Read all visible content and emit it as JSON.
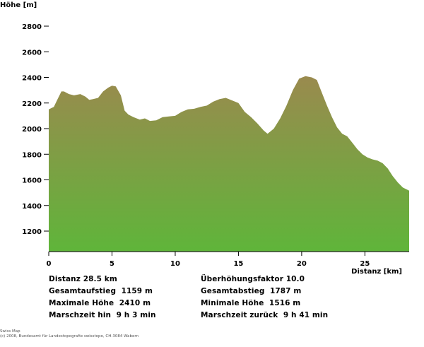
{
  "chart_data": {
    "type": "area",
    "ylabel": "Höhe [m]",
    "xlabel": "Distanz [km]",
    "ylim": [
      1040,
      2960
    ],
    "xlim": [
      0,
      28.5
    ],
    "y_ticks": [
      "1200",
      "1400",
      "1600",
      "1800",
      "2000",
      "2200",
      "2400",
      "2600",
      "2800"
    ],
    "x_ticks": [
      "0",
      "5",
      "10",
      "15",
      "20",
      "25"
    ],
    "grid": false,
    "colors": {
      "top": "#9a8a4e",
      "bottom": "#5fb53a"
    },
    "x": [
      0,
      0.4,
      0.7,
      1.0,
      1.2,
      1.6,
      2.0,
      2.5,
      2.9,
      3.2,
      3.5,
      3.9,
      4.3,
      4.7,
      5.0,
      5.3,
      5.7,
      6.0,
      6.3,
      6.7,
      7.2,
      7.6,
      8.0,
      8.5,
      9.0,
      9.5,
      10.0,
      10.5,
      11.0,
      11.5,
      12.0,
      12.5,
      13.0,
      13.5,
      14.0,
      14.5,
      15.0,
      15.5,
      16.0,
      16.5,
      17.0,
      17.3,
      17.8,
      18.3,
      18.8,
      19.3,
      19.8,
      20.3,
      20.8,
      21.2,
      21.6,
      22.0,
      22.4,
      22.8,
      23.2,
      23.6,
      24.0,
      24.4,
      24.8,
      25.2,
      25.6,
      26.0,
      26.4,
      26.8,
      27.2,
      27.6,
      28.0,
      28.5
    ],
    "y": [
      2150,
      2170,
      2230,
      2290,
      2290,
      2270,
      2260,
      2270,
      2250,
      2225,
      2230,
      2240,
      2290,
      2320,
      2335,
      2330,
      2260,
      2140,
      2110,
      2090,
      2070,
      2080,
      2060,
      2065,
      2090,
      2095,
      2100,
      2130,
      2150,
      2155,
      2170,
      2180,
      2210,
      2230,
      2240,
      2220,
      2200,
      2130,
      2090,
      2040,
      1985,
      1960,
      2000,
      2080,
      2180,
      2300,
      2390,
      2410,
      2400,
      2380,
      2280,
      2180,
      2090,
      2010,
      1960,
      1940,
      1890,
      1840,
      1800,
      1775,
      1760,
      1750,
      1730,
      1690,
      1630,
      1580,
      1540,
      1516
    ]
  },
  "stats": {
    "distanz": "Distanz 28.5 km",
    "ueberhoehung": "Überhöhungsfaktor 10.0",
    "aufstieg": "Gesamtaufstieg  1159 m",
    "abstieg": "Gesamtabstieg  1787 m",
    "max_hoehe": "Maximale Höhe  2410 m",
    "min_hoehe": "Minimale Höhe  1516 m",
    "marsch_hin": "Marschzeit hin  9 h 3 min",
    "marsch_zurueck": "Marschzeit zurück  9 h 41 min"
  },
  "copyright": {
    "line1": "Swiss Map",
    "line2": "(c) 2008, Bundesamt für Landestopografie swisstopo, CH-3084 Wabern"
  }
}
